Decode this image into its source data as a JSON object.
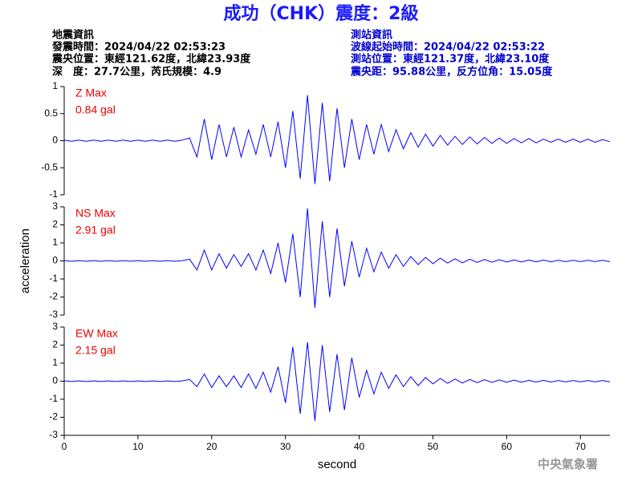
{
  "header": {
    "title": "成功（CHK）震度：2級",
    "left": [
      "地震資訊",
      "發震時間：2024/04/22 02:53:23",
      "震央位置：東經121.62度，北緯23.93度",
      "深　度：27.7公里，芮氏規模：4.9"
    ],
    "right": [
      "測站資訊",
      "波線起始時間：2024/04/22 02:53:22",
      "測站位置：東經121.37度，北緯23.10度",
      "震央距：95.88公里，反方位角：15.05度"
    ]
  },
  "footer": "中央氣象署",
  "chart_data": [
    {
      "type": "line",
      "component": "Z Max",
      "max_label": "0.84 gal",
      "color": "#0000ff",
      "xlim": [
        0,
        74
      ],
      "ylim": [
        -1,
        1
      ],
      "yticks": [
        -1,
        -0.5,
        0,
        0.5,
        1
      ],
      "x": [
        0,
        1,
        2,
        3,
        4,
        5,
        6,
        7,
        8,
        9,
        10,
        11,
        12,
        13,
        14,
        15,
        16,
        17,
        18,
        19,
        20,
        21,
        22,
        23,
        24,
        25,
        26,
        27,
        28,
        29,
        30,
        31,
        32,
        33,
        34,
        35,
        36,
        37,
        38,
        39,
        40,
        41,
        42,
        43,
        44,
        45,
        46,
        47,
        48,
        49,
        50,
        51,
        52,
        53,
        54,
        55,
        56,
        57,
        58,
        59,
        60,
        61,
        62,
        63,
        64,
        65,
        66,
        67,
        68,
        69,
        70,
        71,
        72,
        73,
        74
      ],
      "values": [
        0.01,
        -0.01,
        0.01,
        -0.01,
        0.01,
        -0.01,
        0.01,
        -0.01,
        0.01,
        -0.01,
        0.01,
        -0.01,
        0.01,
        -0.01,
        0.01,
        -0.01,
        0.01,
        0.05,
        -0.3,
        0.4,
        -0.35,
        0.3,
        -0.3,
        0.25,
        -0.3,
        0.2,
        -0.25,
        0.3,
        -0.3,
        0.35,
        -0.5,
        0.55,
        -0.7,
        0.84,
        -0.8,
        0.7,
        -0.75,
        0.6,
        -0.5,
        0.4,
        -0.35,
        0.3,
        -0.25,
        0.3,
        -0.2,
        0.2,
        -0.15,
        0.15,
        -0.12,
        0.12,
        -0.1,
        0.1,
        -0.08,
        0.08,
        -0.07,
        0.07,
        -0.06,
        0.06,
        -0.05,
        0.05,
        -0.05,
        0.04,
        -0.04,
        0.04,
        -0.04,
        0.03,
        -0.03,
        0.03,
        -0.03,
        0.03,
        -0.03,
        0.03,
        -0.03,
        0.02,
        -0.02
      ]
    },
    {
      "type": "line",
      "component": "NS Max",
      "max_label": "2.91 gal",
      "color": "#0000ff",
      "ylabel": "acceleration",
      "xlim": [
        0,
        74
      ],
      "ylim": [
        -3,
        3
      ],
      "yticks": [
        -3,
        -2,
        -1,
        0,
        1,
        2,
        3
      ],
      "x": [
        0,
        1,
        2,
        3,
        4,
        5,
        6,
        7,
        8,
        9,
        10,
        11,
        12,
        13,
        14,
        15,
        16,
        17,
        18,
        19,
        20,
        21,
        22,
        23,
        24,
        25,
        26,
        27,
        28,
        29,
        30,
        31,
        32,
        33,
        34,
        35,
        36,
        37,
        38,
        39,
        40,
        41,
        42,
        43,
        44,
        45,
        46,
        47,
        48,
        49,
        50,
        51,
        52,
        53,
        54,
        55,
        56,
        57,
        58,
        59,
        60,
        61,
        62,
        63,
        64,
        65,
        66,
        67,
        68,
        69,
        70,
        71,
        72,
        73,
        74
      ],
      "values": [
        0.02,
        -0.02,
        0.02,
        -0.02,
        0.02,
        -0.02,
        0.02,
        -0.02,
        0.02,
        -0.02,
        0.02,
        -0.02,
        0.02,
        -0.02,
        0.02,
        -0.02,
        0.02,
        0.1,
        -0.5,
        0.6,
        -0.5,
        0.4,
        -0.4,
        0.35,
        -0.3,
        0.4,
        -0.5,
        0.6,
        -0.7,
        1.0,
        -1.2,
        1.5,
        -2.0,
        2.91,
        -2.6,
        2.2,
        -2.0,
        1.8,
        -1.4,
        1.1,
        -0.9,
        0.7,
        -0.6,
        0.5,
        -0.4,
        0.35,
        -0.3,
        0.25,
        -0.2,
        0.2,
        -0.15,
        0.15,
        -0.12,
        0.12,
        -0.1,
        0.1,
        -0.08,
        0.08,
        -0.07,
        0.07,
        -0.06,
        0.06,
        -0.06,
        0.05,
        -0.05,
        0.05,
        -0.05,
        0.04,
        -0.04,
        0.04,
        -0.04,
        0.04,
        -0.04,
        0.04,
        -0.04
      ]
    },
    {
      "type": "line",
      "component": "EW Max",
      "max_label": "2.15 gal",
      "color": "#0000ff",
      "xlabel": "second",
      "xlim": [
        0,
        74
      ],
      "ylim": [
        -3,
        3
      ],
      "yticks": [
        -3,
        -2,
        -1,
        0,
        1,
        2,
        3
      ],
      "xticks": [
        0,
        10,
        20,
        30,
        40,
        50,
        60,
        70
      ],
      "x": [
        0,
        1,
        2,
        3,
        4,
        5,
        6,
        7,
        8,
        9,
        10,
        11,
        12,
        13,
        14,
        15,
        16,
        17,
        18,
        19,
        20,
        21,
        22,
        23,
        24,
        25,
        26,
        27,
        28,
        29,
        30,
        31,
        32,
        33,
        34,
        35,
        36,
        37,
        38,
        39,
        40,
        41,
        42,
        43,
        44,
        45,
        46,
        47,
        48,
        49,
        50,
        51,
        52,
        53,
        54,
        55,
        56,
        57,
        58,
        59,
        60,
        61,
        62,
        63,
        64,
        65,
        66,
        67,
        68,
        69,
        70,
        71,
        72,
        73,
        74
      ],
      "values": [
        0.02,
        -0.02,
        0.02,
        -0.02,
        0.02,
        -0.02,
        0.02,
        -0.02,
        0.02,
        -0.02,
        0.02,
        -0.02,
        0.02,
        -0.02,
        0.02,
        -0.02,
        0.02,
        0.1,
        -0.3,
        0.4,
        -0.35,
        0.3,
        -0.3,
        0.3,
        -0.35,
        0.4,
        -0.4,
        0.5,
        -0.6,
        0.8,
        -1.2,
        1.9,
        -1.8,
        2.15,
        -2.2,
        2.0,
        -1.7,
        1.5,
        -1.6,
        1.3,
        -0.9,
        0.6,
        -0.7,
        0.5,
        -0.4,
        0.35,
        -0.3,
        0.25,
        -0.25,
        0.2,
        -0.15,
        0.15,
        -0.12,
        0.12,
        -0.1,
        0.1,
        -0.08,
        0.08,
        -0.07,
        0.07,
        -0.06,
        0.06,
        -0.06,
        0.05,
        -0.05,
        0.05,
        -0.05,
        0.04,
        -0.04,
        0.04,
        -0.04,
        0.04,
        -0.04,
        0.04,
        -0.04
      ]
    }
  ]
}
